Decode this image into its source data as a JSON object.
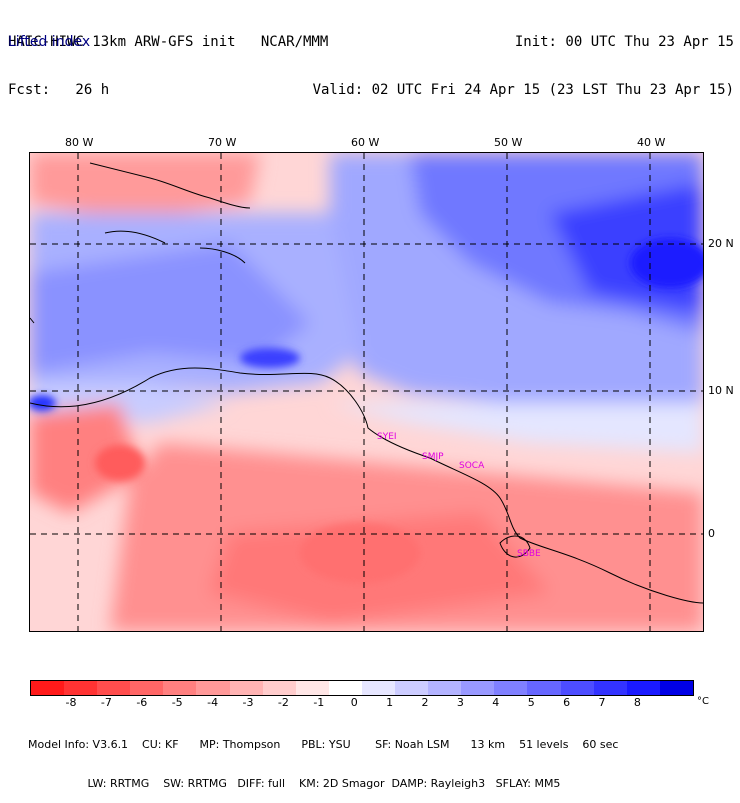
{
  "header": {
    "title": "HAIC-HIWC 13km ARW-GFS init   NCAR/MMM",
    "forecast": "Fcst:   26 h",
    "init": "Init: 00 UTC Thu 23 Apr 15",
    "valid": "Valid: 02 UTC Fri 24 Apr 15 (23 LST Thu 23 Apr 15)",
    "variable": "Lifted index"
  },
  "axes": {
    "longitudes": [
      "80 W",
      "70 W",
      "60 W",
      "50 W",
      "40 W"
    ],
    "latitudes": [
      "20 N",
      "10 N",
      "0"
    ]
  },
  "stations": [
    "SYEI",
    "SMJP",
    "SOCA",
    "SBBE"
  ],
  "colorbar": {
    "labels": [
      "-8",
      "-7",
      "-6",
      "-5",
      "-4",
      "-3",
      "-2",
      "-1",
      "0",
      "1",
      "2",
      "3",
      "4",
      "5",
      "6",
      "7",
      "8"
    ],
    "unit": "°C",
    "colors": [
      "#ff1a1a",
      "#ff3333",
      "#ff4d4d",
      "#ff6666",
      "#ff8080",
      "#ff9999",
      "#ffb3b3",
      "#ffcccc",
      "#ffe6e6",
      "#ffffff",
      "#e6e6ff",
      "#ccccff",
      "#b3b3ff",
      "#9999ff",
      "#8080ff",
      "#6666ff",
      "#4d4dff",
      "#3333ff",
      "#1a1aff",
      "#0000e6"
    ]
  },
  "model_info": {
    "line1": "Model Info: V3.6.1    CU: KF      MP: Thompson      PBL: YSU       SF: Noah LSM      13 km    51 levels    60 sec",
    "line2": "                 LW: RRTMG    SW: RRTMG   DIFF: full    KM: 2D Smagor  DAMP: Rayleigh3   SFLAY: MM5"
  }
}
